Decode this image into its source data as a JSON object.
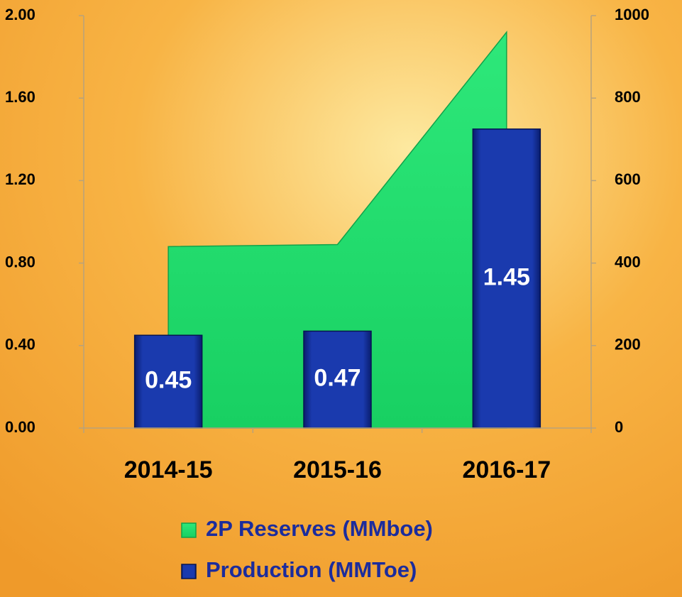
{
  "chart_data": {
    "type": "bar",
    "categories": [
      "2014-15",
      "2015-16",
      "2016-17"
    ],
    "series": [
      {
        "name": "2P Reserves (MMboe)",
        "type": "area",
        "axis": "y2",
        "color": "#1fdc6a",
        "values": [
          440,
          445,
          960
        ]
      },
      {
        "name": "Production (MMToe)",
        "type": "bar",
        "color": "#0f2a8f",
        "values": [
          0.45,
          0.47,
          1.45
        ]
      }
    ],
    "ylim": [
      0,
      2
    ],
    "yticks": [
      {
        "value": 0,
        "label": "0.00"
      },
      {
        "value": 0.4,
        "label": "0.40"
      },
      {
        "value": 0.8,
        "label": "0.80"
      },
      {
        "value": 1.2,
        "label": "1.20"
      },
      {
        "value": 1.6,
        "label": "1.60"
      },
      {
        "value": 2,
        "label": "2.00"
      }
    ],
    "y2lim": [
      0,
      1000
    ],
    "y2ticks": [
      0,
      200,
      400,
      600,
      800,
      1000
    ],
    "data_labels": true
  }
}
